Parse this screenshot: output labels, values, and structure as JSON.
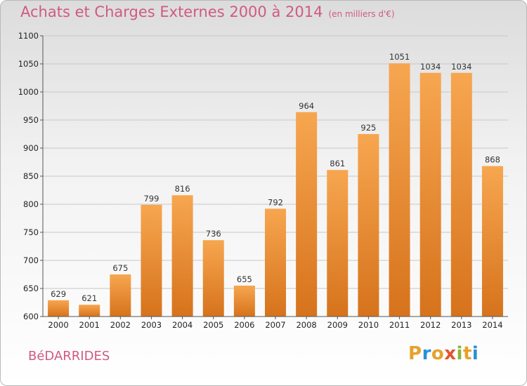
{
  "header": {
    "title": "Achats et Charges Externes 2000 à 2014",
    "unit": "(en milliers d'€)"
  },
  "commune": "BéDARRIDES",
  "logo": {
    "letters": [
      "P",
      "r",
      "o",
      "x",
      "i",
      "t",
      "i"
    ]
  },
  "colors": {
    "bar_light": "#f7a650",
    "bar_dark": "#d6731c",
    "title": "#d05a82",
    "grid": "#c7c7c7"
  },
  "chart_data": {
    "type": "bar",
    "title": "Achats et Charges Externes 2000 à 2014",
    "xlabel": "",
    "ylabel": "",
    "categories": [
      "2000",
      "2001",
      "2002",
      "2003",
      "2004",
      "2005",
      "2006",
      "2007",
      "2008",
      "2009",
      "2010",
      "2011",
      "2012",
      "2013",
      "2014"
    ],
    "values": [
      629,
      621,
      675,
      799,
      816,
      736,
      655,
      792,
      964,
      861,
      925,
      1051,
      1034,
      1034,
      868
    ],
    "ylim": [
      600,
      1100
    ],
    "yticks": [
      600,
      650,
      700,
      750,
      800,
      850,
      900,
      950,
      1000,
      1050,
      1100
    ],
    "grid": true
  }
}
